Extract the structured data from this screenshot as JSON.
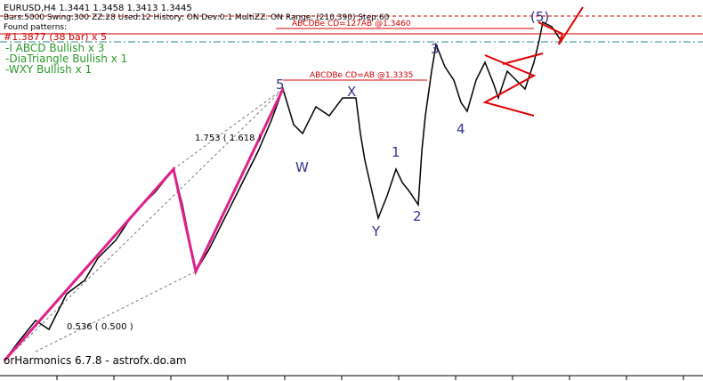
{
  "header": {
    "symbol": "EURUSD,H4  1.3441 1.3458 1.3413 1.3445",
    "settings": "Bars:5000  Swing:300  ZZ:28  Used:12  History: ON Dev:0.1  MultiZZ: ON  Range: (210,390)  Step:60"
  },
  "patterns": {
    "title": "Found patterns:",
    "items": [
      "#1.3877 (38 bar) x 5",
      "-I ABCD Bullish x 3",
      "-DiaTriangle Bullish x 1",
      "-WXY Bullish x 1"
    ]
  },
  "levels": [
    "ABCDBe CD=127AB  @1.3460",
    "ABCDBe CD=AB  @1.3335"
  ],
  "ratios": [
    "1.753 ( 1.618 )",
    "0.536 ( 0.500 )"
  ],
  "waves": [
    "5",
    "X",
    "W",
    "1",
    "Y",
    "2",
    "3",
    "4",
    "(5)"
  ],
  "footer": "orHarmonics 6.7.8 - astrofx.do.am"
}
